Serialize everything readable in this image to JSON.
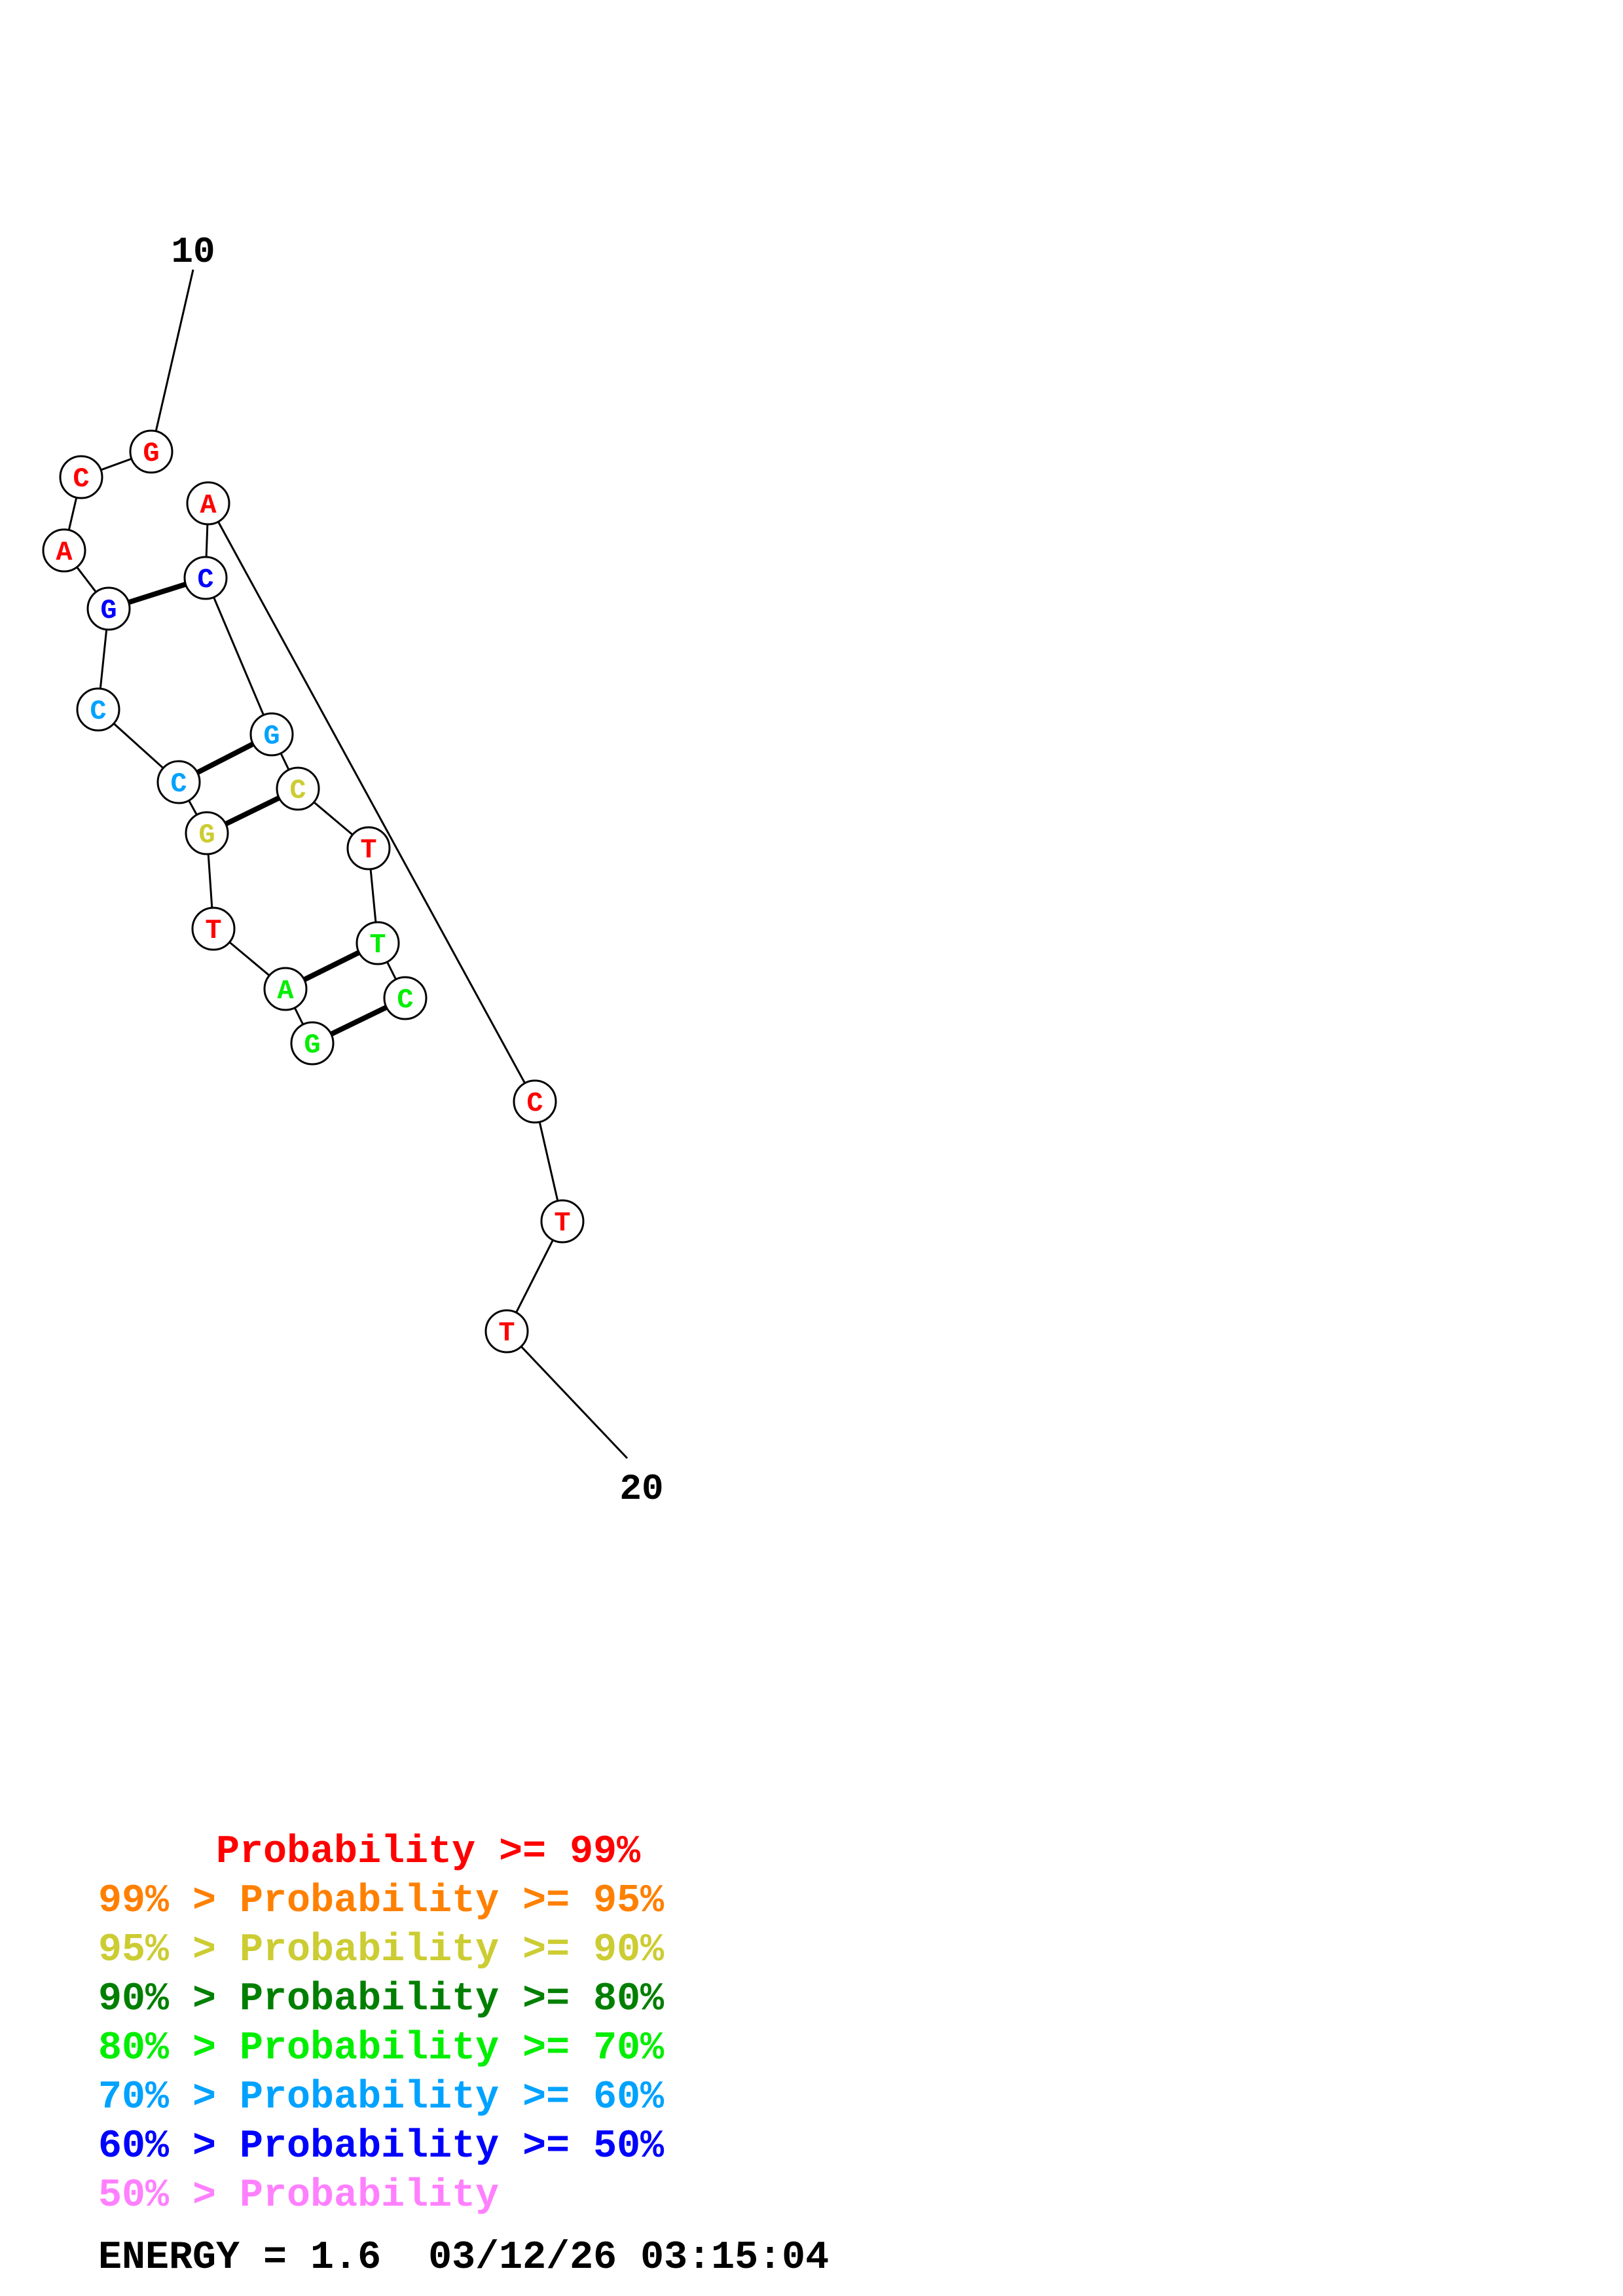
{
  "structure": {
    "start_label": "10",
    "end_label": "20",
    "nucleotides": [
      {
        "base": "G",
        "color": "#ff0000"
      },
      {
        "base": "C",
        "color": "#ff0000"
      },
      {
        "base": "A",
        "color": "#ff0000"
      },
      {
        "base": "G",
        "color": "#0000ff"
      },
      {
        "base": "C",
        "color": "#00a2ff"
      },
      {
        "base": "C",
        "color": "#00a2ff"
      },
      {
        "base": "G",
        "color": "#cccc33"
      },
      {
        "base": "T",
        "color": "#ff0000"
      },
      {
        "base": "A",
        "color": "#00ee00"
      },
      {
        "base": "G",
        "color": "#00ee00"
      },
      {
        "base": "C",
        "color": "#00ee00"
      },
      {
        "base": "T",
        "color": "#00ee00"
      },
      {
        "base": "T",
        "color": "#ff0000"
      },
      {
        "base": "C",
        "color": "#cccc33"
      },
      {
        "base": "G",
        "color": "#00a2ff"
      },
      {
        "base": "C",
        "color": "#0000ff"
      },
      {
        "base": "A",
        "color": "#ff0000"
      },
      {
        "base": "C",
        "color": "#ff0000"
      },
      {
        "base": "T",
        "color": "#ff0000"
      },
      {
        "base": "T",
        "color": "#ff0000"
      }
    ],
    "pairs": [
      [
        3,
        15
      ],
      [
        5,
        14
      ],
      [
        6,
        13
      ],
      [
        8,
        11
      ],
      [
        9,
        10
      ]
    ]
  },
  "legend": [
    {
      "prefix": "     ",
      "text": "Probability >= 99%",
      "color": "#ff0000"
    },
    {
      "prefix": "99% > ",
      "text": "Probability >= 95%",
      "color": "#ff8000"
    },
    {
      "prefix": "95% > ",
      "text": "Probability >= 90%",
      "color": "#cccc33"
    },
    {
      "prefix": "90% > ",
      "text": "Probability >= 80%",
      "color": "#007f00"
    },
    {
      "prefix": "80% > ",
      "text": "Probability >= 70%",
      "color": "#00ee00"
    },
    {
      "prefix": "70% > ",
      "text": "Probability >= 60%",
      "color": "#00a2ff"
    },
    {
      "prefix": "60% > ",
      "text": "Probability >= 50%",
      "color": "#0000ff"
    },
    {
      "prefix": "50% > ",
      "text": "Probability",
      "color": "#ff80ff"
    }
  ],
  "footer": {
    "energy": "ENERGY = 1.6",
    "timestamp": "03/12/26 03:15:04"
  }
}
